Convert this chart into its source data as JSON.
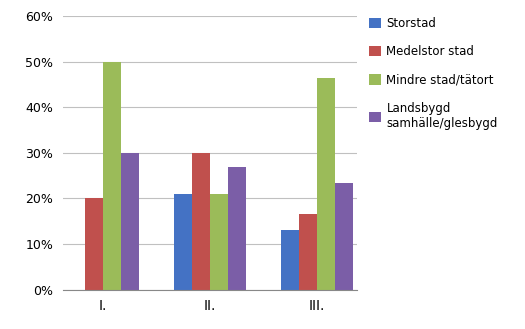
{
  "groups": [
    "I.",
    "II.",
    "III."
  ],
  "series": [
    {
      "label": "Storstad",
      "color": "#4472C4",
      "values": [
        0,
        0.21,
        0.13
      ]
    },
    {
      "label": "Medelstor stad",
      "color": "#C0504D",
      "values": [
        0.2,
        0.3,
        0.165
      ]
    },
    {
      "label": "Mindre stad/tätort",
      "color": "#9BBB59",
      "values": [
        0.5,
        0.21,
        0.465
      ]
    },
    {
      "label": "Landsbygd\nsamälle/glesbygd",
      "color": "#7B5EA7",
      "values": [
        0.3,
        0.27,
        0.235
      ]
    }
  ],
  "ylim": [
    0,
    0.6
  ],
  "yticks": [
    0.0,
    0.1,
    0.2,
    0.3,
    0.4,
    0.5,
    0.6
  ],
  "background_color": "#FFFFFF",
  "grid_color": "#C0C0C0",
  "bar_width": 0.2,
  "group_positions": [
    0.5,
    1.7,
    2.9
  ]
}
